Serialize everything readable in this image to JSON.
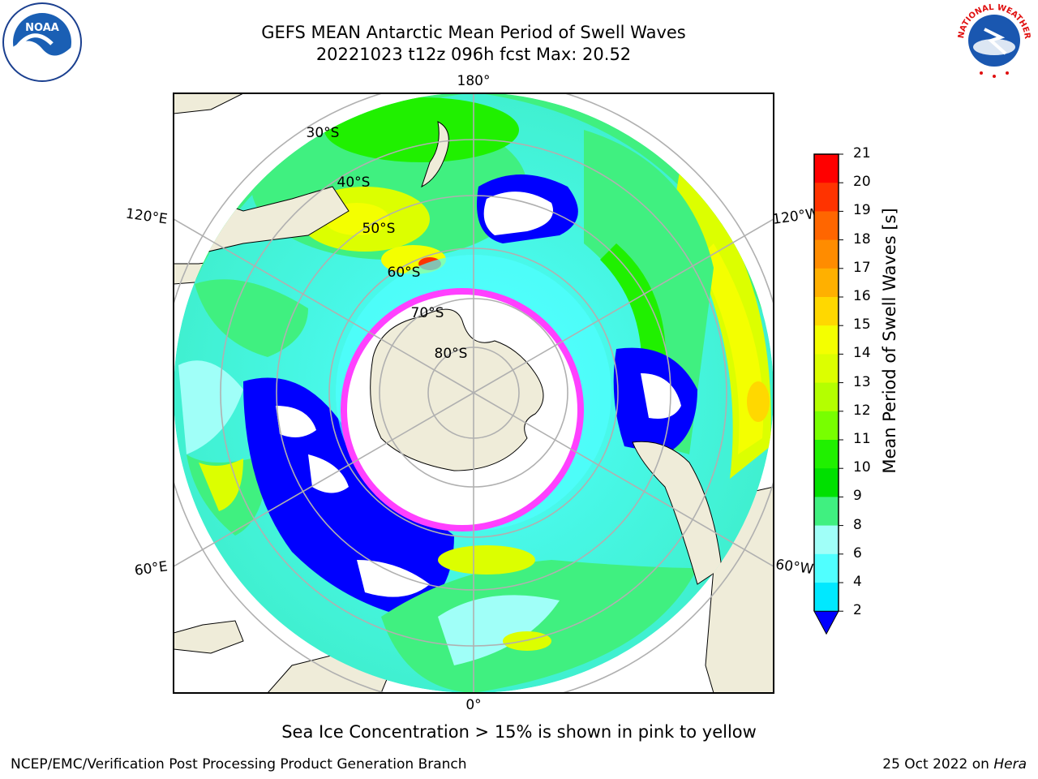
{
  "title": {
    "line1": "GEFS MEAN Antarctic Mean Period of Swell Waves",
    "line2": "20221023 t12z 096h fcst   Max: 20.52"
  },
  "logos": {
    "left": {
      "text": "NOAA"
    },
    "right": {
      "text": "NATIONAL WEATHER SERVICE"
    }
  },
  "map": {
    "projection": "south-polar-stereographic",
    "longitude_labels": [
      "180°",
      "120°E",
      "120°W",
      "60°E",
      "60°W",
      "0°"
    ],
    "latitude_labels": [
      "30°S",
      "40°S",
      "50°S",
      "60°S",
      "70°S",
      "80°S"
    ],
    "colors": {
      "land": "#efecd9",
      "ice_edge": "#ff40ff",
      "grid": "#b0b0b0"
    }
  },
  "colorbar": {
    "title": "Mean Period of Swell Waves [s]",
    "ticks": [
      "21",
      "20",
      "19",
      "18",
      "17",
      "16",
      "15",
      "14",
      "13",
      "12",
      "11",
      "10",
      "9",
      "8",
      "6",
      "4",
      "2"
    ],
    "colors": [
      "#ff0000",
      "#ff3300",
      "#ff6600",
      "#ff8c00",
      "#ffb000",
      "#ffd800",
      "#f4ff00",
      "#dcff00",
      "#b4ff00",
      "#78ff00",
      "#20f000",
      "#00e000",
      "#40f080",
      "#a0fff8",
      "#50ffff",
      "#00e8ff",
      "#0080ff"
    ],
    "extend_color": "#0000ff"
  },
  "note": "Sea Ice Concentration > 15% is shown in pink to yellow",
  "footer": {
    "left": "NCEP/EMC/Verification Post Processing Product Generation Branch",
    "right_prefix": "25 Oct 2022 on ",
    "right_machine": "Hera"
  }
}
